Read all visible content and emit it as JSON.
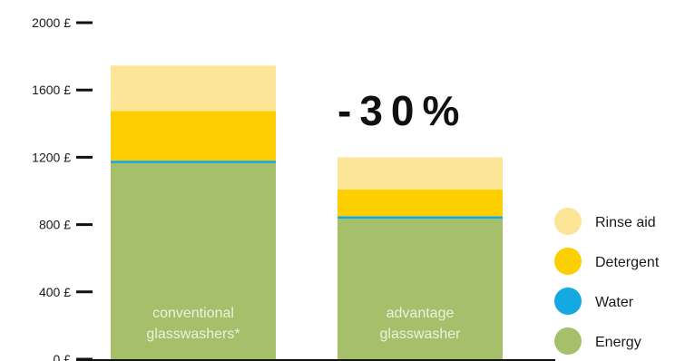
{
  "chart_data": {
    "type": "bar",
    "stacked": true,
    "categories": [
      [
        "conventional",
        "glasswashers*"
      ],
      [
        "advantage",
        "glasswasher"
      ]
    ],
    "series": [
      {
        "name": "Energy",
        "color": "#a5bf6a",
        "values": [
          1165,
          835
        ]
      },
      {
        "name": "Water",
        "color": "#14a9e0",
        "values": [
          15,
          15
        ]
      },
      {
        "name": "Detergent",
        "color": "#fdcf00",
        "values": [
          295,
          158
        ]
      },
      {
        "name": "Rinse aid",
        "color": "#fde597",
        "values": [
          270,
          192
        ]
      }
    ],
    "y_ticks": [
      "0 £",
      "400 £",
      "800 £",
      "1200 £",
      "1600 £",
      "2000 £"
    ],
    "y_tick_values": [
      0,
      400,
      800,
      1200,
      1600,
      2000
    ],
    "ylim": [
      0,
      2000
    ],
    "legend_order": [
      "Rinse aid",
      "Detergent",
      "Water",
      "Energy"
    ],
    "legend_position": "bottom-right",
    "annotation": "-30%",
    "grid": false
  }
}
